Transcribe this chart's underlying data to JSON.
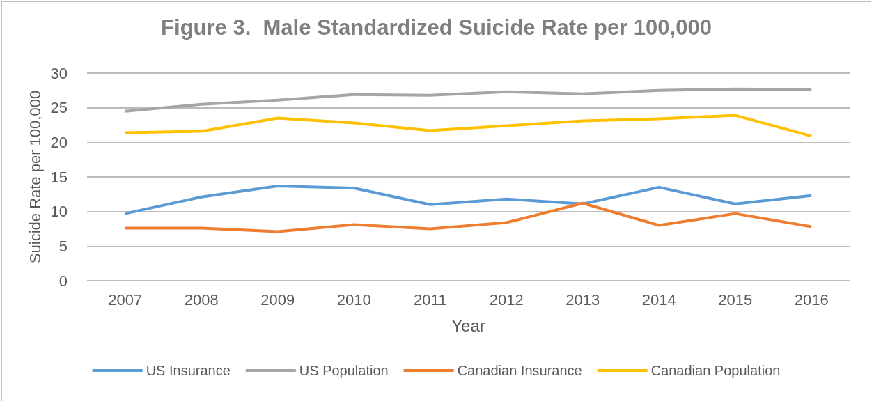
{
  "chart_data": {
    "type": "line",
    "title": "Figure 3.  Male Standardized Suicide Rate per 100,000",
    "xlabel": "Year",
    "ylabel": "Suicide Rate per 100,000",
    "categories": [
      "2007",
      "2008",
      "2009",
      "2010",
      "2011",
      "2012",
      "2013",
      "2014",
      "2015",
      "2016"
    ],
    "series": [
      {
        "name": "US Insurance",
        "color": "#5b9bd5",
        "values": [
          9.7,
          12.1,
          13.7,
          13.4,
          11.0,
          11.8,
          11.1,
          13.5,
          11.1,
          12.3
        ]
      },
      {
        "name": "US Population",
        "color": "#a5a5a5",
        "values": [
          24.5,
          25.5,
          26.1,
          26.9,
          26.8,
          27.3,
          27.0,
          27.5,
          27.7,
          27.6
        ]
      },
      {
        "name": "Canadian Insurance",
        "color": "#ed7d31",
        "values": [
          7.6,
          7.6,
          7.1,
          8.1,
          7.5,
          8.4,
          11.2,
          8.0,
          9.7,
          7.8
        ]
      },
      {
        "name": "Canadian Population",
        "color": "#ffc000",
        "values": [
          21.4,
          21.6,
          23.5,
          22.8,
          21.7,
          22.4,
          23.1,
          23.4,
          23.9,
          20.9
        ]
      }
    ],
    "ylim": [
      0,
      30
    ],
    "yticks": [
      0,
      5,
      10,
      15,
      20,
      25,
      30
    ],
    "grid": "y",
    "legend": "bottom",
    "marker": "none",
    "line_style": "solid"
  }
}
